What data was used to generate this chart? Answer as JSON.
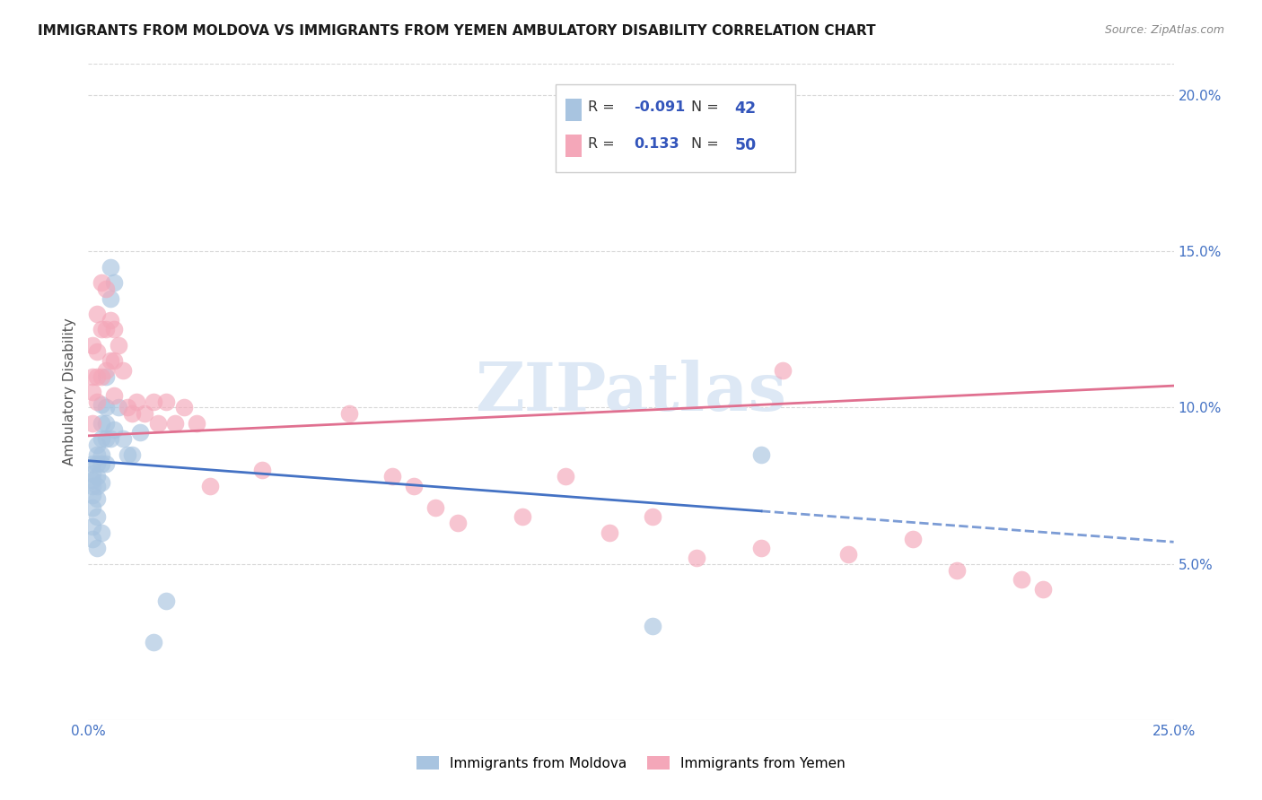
{
  "title": "IMMIGRANTS FROM MOLDOVA VS IMMIGRANTS FROM YEMEN AMBULATORY DISABILITY CORRELATION CHART",
  "source": "Source: ZipAtlas.com",
  "ylabel": "Ambulatory Disability",
  "xlim": [
    0.0,
    0.25
  ],
  "ylim": [
    0.0,
    0.21
  ],
  "moldova_color": "#a8c4e0",
  "yemen_color": "#f4a7b9",
  "moldova_line_color": "#4472c4",
  "yemen_line_color": "#e07090",
  "moldova_line_y0": 0.083,
  "moldova_line_y1": 0.057,
  "moldova_line_x_solid_end": 0.155,
  "yemen_line_y0": 0.091,
  "yemen_line_y1": 0.107,
  "background_color": "#ffffff",
  "grid_color": "#d8d8d8",
  "watermark": "ZIPatlas",
  "moldova_x": [
    0.001,
    0.001,
    0.001,
    0.001,
    0.001,
    0.001,
    0.001,
    0.001,
    0.002,
    0.002,
    0.002,
    0.002,
    0.002,
    0.002,
    0.002,
    0.002,
    0.003,
    0.003,
    0.003,
    0.003,
    0.003,
    0.003,
    0.003,
    0.004,
    0.004,
    0.004,
    0.004,
    0.004,
    0.005,
    0.005,
    0.005,
    0.006,
    0.006,
    0.007,
    0.008,
    0.009,
    0.01,
    0.012,
    0.015,
    0.018,
    0.155,
    0.13
  ],
  "moldova_y": [
    0.082,
    0.079,
    0.077,
    0.075,
    0.072,
    0.068,
    0.062,
    0.058,
    0.088,
    0.085,
    0.082,
    0.078,
    0.075,
    0.071,
    0.065,
    0.055,
    0.101,
    0.095,
    0.09,
    0.085,
    0.082,
    0.076,
    0.06,
    0.11,
    0.1,
    0.095,
    0.09,
    0.082,
    0.145,
    0.135,
    0.09,
    0.14,
    0.093,
    0.1,
    0.09,
    0.085,
    0.085,
    0.092,
    0.025,
    0.038,
    0.085,
    0.03
  ],
  "yemen_x": [
    0.001,
    0.001,
    0.001,
    0.001,
    0.002,
    0.002,
    0.002,
    0.002,
    0.003,
    0.003,
    0.003,
    0.004,
    0.004,
    0.004,
    0.005,
    0.005,
    0.006,
    0.006,
    0.006,
    0.007,
    0.008,
    0.009,
    0.01,
    0.011,
    0.013,
    0.015,
    0.016,
    0.018,
    0.02,
    0.022,
    0.025,
    0.028,
    0.04,
    0.06,
    0.07,
    0.075,
    0.08,
    0.085,
    0.1,
    0.11,
    0.12,
    0.13,
    0.14,
    0.155,
    0.16,
    0.175,
    0.19,
    0.2,
    0.215,
    0.22
  ],
  "yemen_y": [
    0.12,
    0.11,
    0.105,
    0.095,
    0.13,
    0.118,
    0.11,
    0.102,
    0.14,
    0.125,
    0.11,
    0.138,
    0.125,
    0.112,
    0.128,
    0.115,
    0.125,
    0.115,
    0.104,
    0.12,
    0.112,
    0.1,
    0.098,
    0.102,
    0.098,
    0.102,
    0.095,
    0.102,
    0.095,
    0.1,
    0.095,
    0.075,
    0.08,
    0.098,
    0.078,
    0.075,
    0.068,
    0.063,
    0.065,
    0.078,
    0.06,
    0.065,
    0.052,
    0.055,
    0.112,
    0.053,
    0.058,
    0.048,
    0.045,
    0.042
  ]
}
